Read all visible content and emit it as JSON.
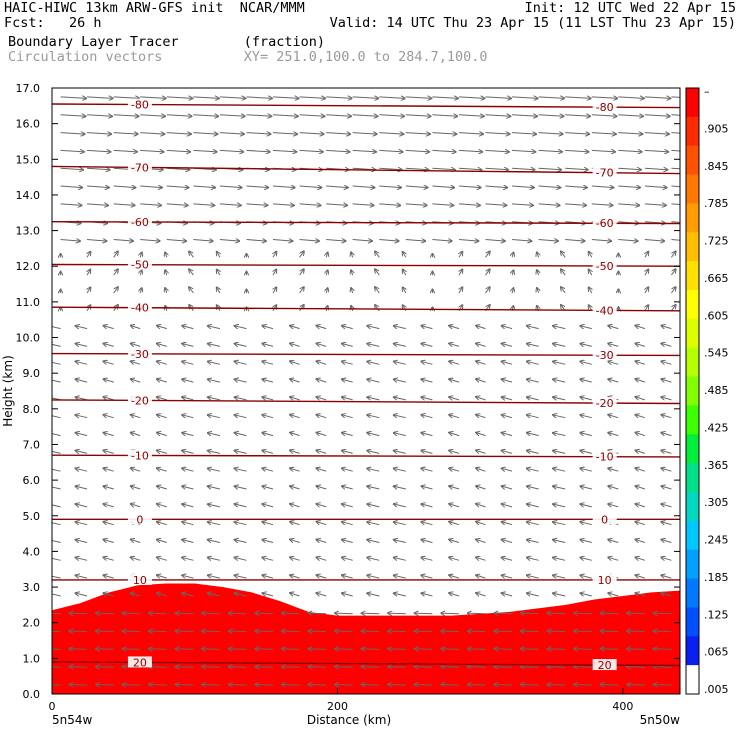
{
  "header": {
    "title": "HAIC-HIWC 13km ARW-GFS init",
    "org": "NCAR/MMM",
    "init": "Init: 12 UTC Wed 22 Apr 15",
    "fcst_label": "Fcst:",
    "fcst_value": "26 h",
    "valid": "Valid: 14 UTC Thu 23 Apr 15 (11 LST Thu 23 Apr 15)",
    "field_name": "Boundary Layer Tracer",
    "field_units": "(fraction)",
    "vectors_label": "Circulation vectors",
    "xy_label": "XY= 251.0,100.0 to 284.7,100.0"
  },
  "chart_data": {
    "type": "heatmap",
    "title": "Boundary Layer Tracer",
    "xlabel": "Distance (km)",
    "ylabel": "Height (km)",
    "xlim": [
      0,
      440
    ],
    "ylim": [
      0,
      17
    ],
    "x_ticks": [
      0,
      200,
      400
    ],
    "x_tick_labels": [
      "0",
      "200",
      "400"
    ],
    "x_end_labels": {
      "left": "5n54w",
      "right": "5n50w"
    },
    "y_ticks": [
      0,
      1,
      2,
      3,
      4,
      5,
      6,
      7,
      8,
      9,
      10,
      11,
      12,
      13,
      14,
      15,
      16,
      17
    ],
    "y_tick_labels": [
      "0.0",
      "1.0",
      "2.0",
      "3.0",
      "4.0",
      "5.0",
      "6.0",
      "7.0",
      "8.0",
      "9.0",
      "10.0",
      "11.0",
      "12.0",
      "13.0",
      "14.0",
      "15.0",
      "16.0",
      "17.0"
    ],
    "colorbar": {
      "labels": [
        "–",
        ".905",
        ".845",
        ".785",
        ".725",
        ".665",
        ".605",
        ".545",
        ".485",
        ".425",
        ".365",
        ".305",
        ".245",
        ".185",
        ".125",
        ".065",
        ".005"
      ],
      "colors": [
        "#ff0000",
        "#ff2b00",
        "#ff5200",
        "#ff7800",
        "#ff9c00",
        "#ffbf00",
        "#ffe000",
        "#ffff00",
        "#dcff00",
        "#b4ff00",
        "#82ff00",
        "#3cff00",
        "#00ee3c",
        "#00e08a",
        "#00d8c0",
        "#00c8ff",
        "#00a0ff",
        "#0078ff",
        "#0050ff",
        "#0a20f0",
        "#ffffff"
      ]
    },
    "boundary_layer_top": {
      "x": [
        0,
        20,
        40,
        60,
        80,
        100,
        120,
        140,
        160,
        180,
        200,
        240,
        280,
        320,
        360,
        380,
        400,
        420,
        440
      ],
      "y": [
        2.35,
        2.55,
        2.85,
        3.05,
        3.1,
        3.1,
        3.0,
        2.85,
        2.6,
        2.3,
        2.2,
        2.2,
        2.2,
        2.3,
        2.5,
        2.65,
        2.75,
        2.85,
        2.9
      ]
    },
    "temperature_contours": [
      {
        "label": "-80",
        "y": [
          16.55,
          16.45
        ]
      },
      {
        "label": "-70",
        "y": [
          14.8,
          14.6
        ]
      },
      {
        "label": "-60",
        "y": [
          13.25,
          13.2
        ]
      },
      {
        "label": "-50",
        "y": [
          12.05,
          12.0
        ]
      },
      {
        "label": "-40",
        "y": [
          10.85,
          10.75
        ]
      },
      {
        "label": "-30",
        "y": [
          9.55,
          9.5
        ]
      },
      {
        "label": "-20",
        "y": [
          8.25,
          8.15
        ]
      },
      {
        "label": "-10",
        "y": [
          6.7,
          6.65
        ]
      },
      {
        "label": "0",
        "y": [
          4.9,
          4.9
        ]
      },
      {
        "label": "10",
        "y": [
          3.2,
          3.2
        ]
      },
      {
        "label": "20",
        "y": [
          0.9,
          0.8
        ]
      }
    ]
  }
}
